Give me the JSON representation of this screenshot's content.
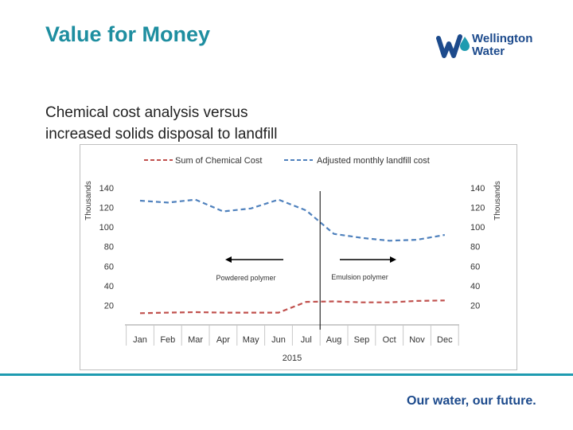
{
  "page": {
    "title": "Value for Money",
    "subtitle": "Chemical cost analysis versus increased solids disposal to landfill",
    "footer_tagline": "Our water, our future."
  },
  "logo": {
    "line1": "Wellington",
    "line2": "Water",
    "color_primary": "#1c4a8c",
    "color_accent": "#1e9bb0"
  },
  "colors": {
    "title": "#1e8ea0",
    "series_chemical": "#c0504d",
    "series_landfill": "#4f81bd",
    "rule": "#1e9bb0"
  },
  "chart_data": {
    "type": "line",
    "x": [
      "Jan",
      "Feb",
      "Mar",
      "Apr",
      "May",
      "Jun",
      "Jul",
      "Aug",
      "Sep",
      "Oct",
      "Nov",
      "Dec"
    ],
    "xlabel": "2015",
    "ylabel_left": "Thousands",
    "ylabel_right": "Thousands",
    "ylim": [
      0,
      140
    ],
    "yticks": [
      20,
      40,
      60,
      80,
      100,
      120,
      140
    ],
    "legend_position": "top",
    "series": [
      {
        "name": "Sum of Chemical Cost",
        "axis": "left",
        "style": "dashed",
        "values": [
          12,
          12.5,
          13,
          12.5,
          12.5,
          12.5,
          23.5,
          24,
          23,
          23,
          24.5,
          25
        ]
      },
      {
        "name": "Adjusted monthly landfill cost",
        "axis": "right",
        "style": "dashed",
        "values": [
          127,
          125,
          128,
          116,
          119,
          128,
          117,
          93,
          89,
          86,
          87,
          92
        ]
      }
    ],
    "annotations": {
      "divider_between": [
        "Jul",
        "Aug"
      ],
      "left_label": "Powdered polymer",
      "left_arrow": "left",
      "right_label": "Emulsion polymer",
      "right_arrow": "right"
    }
  }
}
